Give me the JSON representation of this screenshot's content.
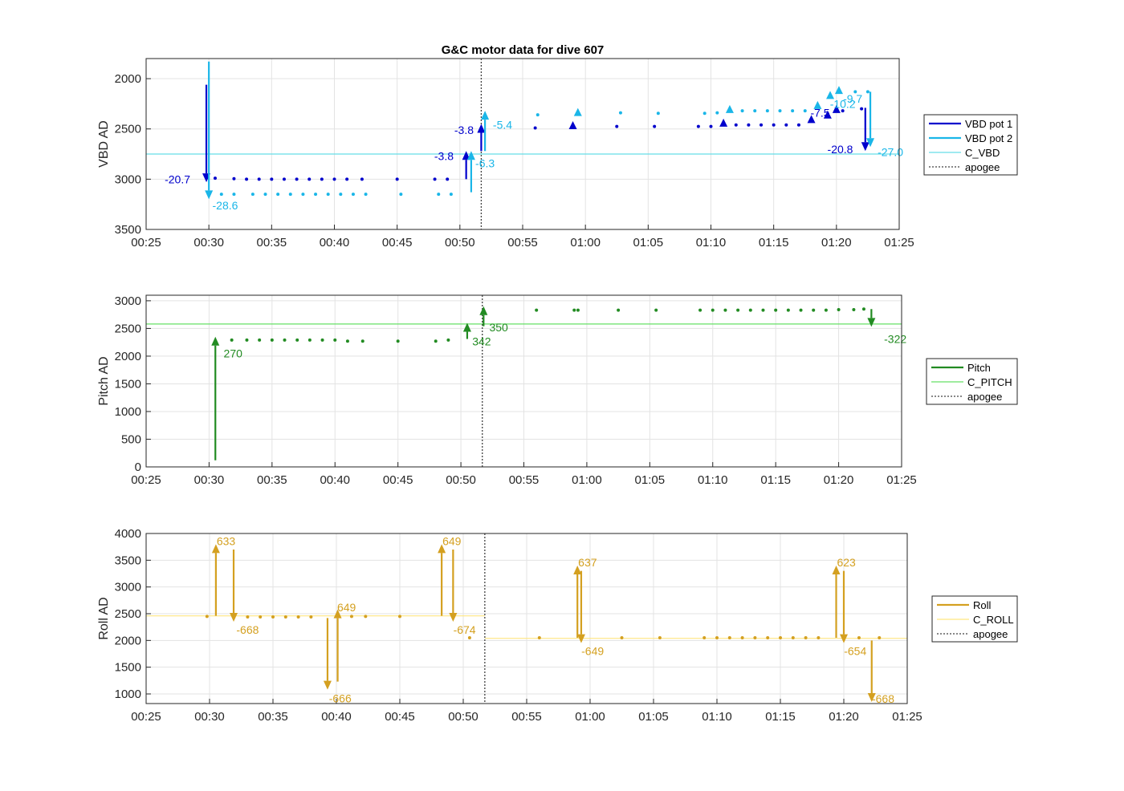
{
  "figure_title": "G&C motor data for dive 607",
  "chart_data": [
    {
      "type": "scatter",
      "title": "G&C motor data for dive 607",
      "ylabel": "VBD AD",
      "xlabel": "",
      "x_ticks": [
        "00:25",
        "00:30",
        "00:35",
        "00:40",
        "00:45",
        "00:50",
        "00:55",
        "01:00",
        "01:05",
        "01:10",
        "01:15",
        "01:20",
        "01:25"
      ],
      "xlim": [
        25,
        85
      ],
      "ylim": [
        3500,
        1800
      ],
      "y_reversed": true,
      "y_ticks": [
        "2000",
        "2500",
        "3000",
        "3500"
      ],
      "y_tick_values": [
        2000,
        2500,
        3000,
        3500
      ],
      "grid": true,
      "legend_position": "right",
      "legend": [
        "VBD pot 1",
        "VBD pot 2",
        "C_VBD",
        "apogee"
      ],
      "colors": {
        "pot1": "#0000cc",
        "pot2": "#1ab6e8",
        "c_line": "#66dde8",
        "apogee": "#404040"
      },
      "c_value": 2750,
      "apogee_x": 51.7,
      "series": [
        {
          "name": "VBD pot 1",
          "points": [
            [
              30.5,
              2990
            ],
            [
              32,
              2995
            ],
            [
              33,
              3000
            ],
            [
              34,
              3000
            ],
            [
              35,
              3000
            ],
            [
              36,
              3000
            ],
            [
              37,
              3000
            ],
            [
              38,
              3000
            ],
            [
              39,
              3000
            ],
            [
              40,
              3000
            ],
            [
              41,
              3000
            ],
            [
              42.2,
              3000
            ],
            [
              45,
              3000
            ],
            [
              48,
              3000
            ],
            [
              49,
              3000
            ],
            [
              56,
              2490
            ],
            [
              59,
              2480
            ],
            [
              62.5,
              2475
            ],
            [
              65.5,
              2475
            ],
            [
              69,
              2475
            ],
            [
              70,
              2475
            ],
            [
              72,
              2460
            ],
            [
              73,
              2460
            ],
            [
              74,
              2460
            ],
            [
              75,
              2460
            ],
            [
              76,
              2460
            ],
            [
              77,
              2460
            ],
            [
              80.5,
              2320
            ],
            [
              82,
              2300
            ]
          ],
          "triangles": [
            [
              59,
              2470
            ],
            [
              71,
              2445
            ],
            [
              78,
              2410
            ],
            [
              79.3,
              2365
            ],
            [
              80,
              2310
            ]
          ]
        },
        {
          "name": "VBD pot 2",
          "points": [
            [
              31,
              3150
            ],
            [
              32,
              3150
            ],
            [
              33.5,
              3150
            ],
            [
              34.5,
              3150
            ],
            [
              35.5,
              3150
            ],
            [
              36.5,
              3150
            ],
            [
              37.5,
              3150
            ],
            [
              38.5,
              3150
            ],
            [
              39.5,
              3150
            ],
            [
              40.5,
              3150
            ],
            [
              41.5,
              3150
            ],
            [
              42.5,
              3150
            ],
            [
              45.3,
              3150
            ],
            [
              48.3,
              3150
            ],
            [
              49.3,
              3150
            ],
            [
              56.2,
              2360
            ],
            [
              62.8,
              2340
            ],
            [
              65.8,
              2345
            ],
            [
              69.5,
              2345
            ],
            [
              70.5,
              2340
            ],
            [
              72.5,
              2320
            ],
            [
              73.5,
              2320
            ],
            [
              74.5,
              2320
            ],
            [
              75.5,
              2320
            ],
            [
              76.5,
              2320
            ],
            [
              77.5,
              2320
            ],
            [
              81.5,
              2130
            ],
            [
              82.5,
              2130
            ]
          ],
          "triangles": [
            [
              59.4,
              2340
            ],
            [
              71.5,
              2310
            ],
            [
              78.5,
              2270
            ],
            [
              79.5,
              2170
            ],
            [
              80.2,
              2120
            ]
          ]
        }
      ],
      "arrows": [
        {
          "series": 0,
          "x": 29.8,
          "from": 2060,
          "to": 3030,
          "label": "-20.7",
          "lx": 27.5,
          "ly": 3000,
          "anchor": "middle"
        },
        {
          "series": 1,
          "x": 30,
          "from": 1830,
          "to": 3200,
          "label": "-28.6",
          "lx": 31.3,
          "ly": 3260,
          "anchor": "middle"
        },
        {
          "series": 0,
          "x": 50.5,
          "from": 3000,
          "to": 2720,
          "label": "-3.8",
          "lx": 49.5,
          "ly": 2770,
          "anchor": "end"
        },
        {
          "series": 1,
          "x": 50.9,
          "from": 3130,
          "to": 2720,
          "label": "-6.3",
          "lx": 52.0,
          "ly": 2840,
          "anchor": "middle"
        },
        {
          "series": 0,
          "x": 51.7,
          "from": 2720,
          "to": 2450,
          "label": "-3.8",
          "lx": 51.1,
          "ly": 2510,
          "anchor": "end"
        },
        {
          "series": 1,
          "x": 52.0,
          "from": 2720,
          "to": 2320,
          "label": "-5.4",
          "lx": 53.4,
          "ly": 2460,
          "anchor": "middle"
        },
        {
          "series": 0,
          "x": 82.3,
          "from": 2290,
          "to": 2720,
          "label": "-20.8",
          "lx": 80.3,
          "ly": 2700,
          "anchor": "middle"
        },
        {
          "series": 1,
          "x": 82.7,
          "from": 2130,
          "to": 2680,
          "label": "-27.0",
          "lx": 84.3,
          "ly": 2730,
          "anchor": "middle"
        }
      ],
      "point_labels": [
        {
          "series": 0,
          "text": "-7.5",
          "x": 78.7,
          "y": 2340
        },
        {
          "series": 1,
          "text": "-10.2",
          "x": 80.5,
          "y": 2250
        },
        {
          "series": 1,
          "text": "-9.7",
          "x": 81.3,
          "y": 2200
        }
      ]
    },
    {
      "type": "scatter",
      "ylabel": "Pitch AD",
      "xlabel": "",
      "x_ticks": [
        "00:25",
        "00:30",
        "00:35",
        "00:40",
        "00:45",
        "00:50",
        "00:55",
        "01:00",
        "01:05",
        "01:10",
        "01:15",
        "01:20",
        "01:25"
      ],
      "xlim": [
        25,
        85
      ],
      "ylim": [
        0,
        3100
      ],
      "y_reversed": false,
      "y_ticks": [
        "0",
        "500",
        "1000",
        "1500",
        "2000",
        "2500",
        "3000"
      ],
      "y_tick_values": [
        0,
        500,
        1000,
        1500,
        2000,
        2500,
        3000
      ],
      "grid": true,
      "legend_position": "right",
      "legend": [
        "Pitch",
        "C_PITCH",
        "apogee"
      ],
      "colors": {
        "main": "#228b22",
        "c_line": "#66e066",
        "apogee": "#404040"
      },
      "c_value": 2580,
      "apogee_x": 51.7,
      "series": [
        {
          "name": "Pitch",
          "points": [
            [
              31.8,
              2290
            ],
            [
              33,
              2290
            ],
            [
              34,
              2290
            ],
            [
              35,
              2290
            ],
            [
              36,
              2290
            ],
            [
              37,
              2290
            ],
            [
              38,
              2290
            ],
            [
              39,
              2290
            ],
            [
              40,
              2290
            ],
            [
              41,
              2270
            ],
            [
              42.2,
              2270
            ],
            [
              45,
              2270
            ],
            [
              48,
              2270
            ],
            [
              49,
              2290
            ],
            [
              56,
              2830
            ],
            [
              59,
              2830
            ],
            [
              59.3,
              2830
            ],
            [
              62.5,
              2830
            ],
            [
              65.5,
              2830
            ],
            [
              69,
              2830
            ],
            [
              70,
              2830
            ],
            [
              71,
              2830
            ],
            [
              72,
              2830
            ],
            [
              73,
              2830
            ],
            [
              74,
              2830
            ],
            [
              75,
              2830
            ],
            [
              76,
              2830
            ],
            [
              77,
              2830
            ],
            [
              78,
              2830
            ],
            [
              79,
              2830
            ],
            [
              80,
              2840
            ],
            [
              81.2,
              2840
            ],
            [
              82,
              2850
            ]
          ],
          "triangles": []
        }
      ],
      "arrows": [
        {
          "series": 0,
          "x": 30.5,
          "from": 120,
          "to": 2350,
          "label": "270",
          "lx": 31.9,
          "ly": 2050,
          "anchor": "middle"
        },
        {
          "series": 0,
          "x": 50.5,
          "from": 2310,
          "to": 2600,
          "label": "342",
          "lx": 50.9,
          "ly": 2270,
          "anchor": "start"
        },
        {
          "series": 0,
          "x": 51.8,
          "from": 2540,
          "to": 2900,
          "label": "350",
          "lx": 53.0,
          "ly": 2520,
          "anchor": "middle"
        },
        {
          "series": 0,
          "x": 82.6,
          "from": 2850,
          "to": 2530,
          "label": "-322",
          "lx": 84.5,
          "ly": 2310,
          "anchor": "middle"
        }
      ],
      "point_labels": []
    },
    {
      "type": "scatter",
      "ylabel": "Roll AD",
      "xlabel": "",
      "x_ticks": [
        "00:25",
        "00:30",
        "00:35",
        "00:40",
        "00:45",
        "00:50",
        "00:55",
        "01:00",
        "01:05",
        "01:10",
        "01:15",
        "01:20",
        "01:25"
      ],
      "xlim": [
        25,
        85
      ],
      "ylim": [
        820,
        4000
      ],
      "y_reversed": false,
      "y_ticks": [
        "1000",
        "1500",
        "2000",
        "2500",
        "3000",
        "3500",
        "4000"
      ],
      "y_tick_values": [
        1000,
        1500,
        2000,
        2500,
        3000,
        3500,
        4000
      ],
      "grid": true,
      "legend_position": "right",
      "legend": [
        "Roll",
        "C_ROLL",
        "apogee"
      ],
      "colors": {
        "main": "#d4a020",
        "c_line": "#ffe680",
        "apogee": "#404040"
      },
      "c_value_before": 2460,
      "c_value_after": 2040,
      "apogee_x": 51.7,
      "series": [
        {
          "name": "Roll",
          "points": [
            [
              29.8,
              2450
            ],
            [
              33,
              2440
            ],
            [
              34,
              2440
            ],
            [
              35,
              2440
            ],
            [
              36,
              2440
            ],
            [
              37,
              2440
            ],
            [
              38,
              2440
            ],
            [
              41.2,
              2450
            ],
            [
              42.3,
              2450
            ],
            [
              45,
              2450
            ],
            [
              50.5,
              2050
            ],
            [
              56,
              2050
            ],
            [
              62.5,
              2050
            ],
            [
              65.5,
              2050
            ],
            [
              69,
              2050
            ],
            [
              70,
              2050
            ],
            [
              71,
              2050
            ],
            [
              72,
              2050
            ],
            [
              73,
              2050
            ],
            [
              74,
              2050
            ],
            [
              75,
              2050
            ],
            [
              76,
              2050
            ],
            [
              77,
              2050
            ],
            [
              78,
              2050
            ],
            [
              81.2,
              2050
            ],
            [
              82.8,
              2050
            ]
          ],
          "triangles": []
        }
      ],
      "arrows": [
        {
          "series": 0,
          "x": 30.5,
          "from": 2460,
          "to": 3800,
          "label": "633",
          "lx": 31.3,
          "ly": 3860,
          "anchor": "middle"
        },
        {
          "series": 0,
          "x": 31.9,
          "from": 3700,
          "to": 2350,
          "label": "-668",
          "lx": 33.0,
          "ly": 2200,
          "anchor": "middle"
        },
        {
          "series": 0,
          "x": 39.3,
          "from": 2420,
          "to": 1080,
          "label": "-666",
          "lx": 40.3,
          "ly": 920,
          "anchor": "middle"
        },
        {
          "series": 0,
          "x": 40.1,
          "from": 1230,
          "to": 2580,
          "label": "649",
          "lx": 40.8,
          "ly": 2620,
          "anchor": "middle"
        },
        {
          "series": 0,
          "x": 48.3,
          "from": 2460,
          "to": 3800,
          "label": "649",
          "lx": 49.1,
          "ly": 3860,
          "anchor": "middle"
        },
        {
          "series": 0,
          "x": 49.2,
          "from": 3700,
          "to": 2350,
          "label": "-674",
          "lx": 50.1,
          "ly": 2200,
          "anchor": "middle"
        },
        {
          "series": 0,
          "x": 59.0,
          "from": 2050,
          "to": 3400,
          "label": "637",
          "lx": 59.8,
          "ly": 3460,
          "anchor": "middle"
        },
        {
          "series": 0,
          "x": 59.3,
          "from": 3300,
          "to": 1950,
          "label": "-649",
          "lx": 60.2,
          "ly": 1800,
          "anchor": "middle"
        },
        {
          "series": 0,
          "x": 79.4,
          "from": 2050,
          "to": 3400,
          "label": "623",
          "lx": 80.2,
          "ly": 3460,
          "anchor": "middle"
        },
        {
          "series": 0,
          "x": 80.0,
          "from": 3300,
          "to": 1950,
          "label": "-654",
          "lx": 80.9,
          "ly": 1800,
          "anchor": "middle"
        },
        {
          "series": 0,
          "x": 82.2,
          "from": 2000,
          "to": 850,
          "label": "-668",
          "lx": 83.1,
          "ly": 910,
          "anchor": "middle"
        }
      ],
      "point_labels": []
    }
  ]
}
